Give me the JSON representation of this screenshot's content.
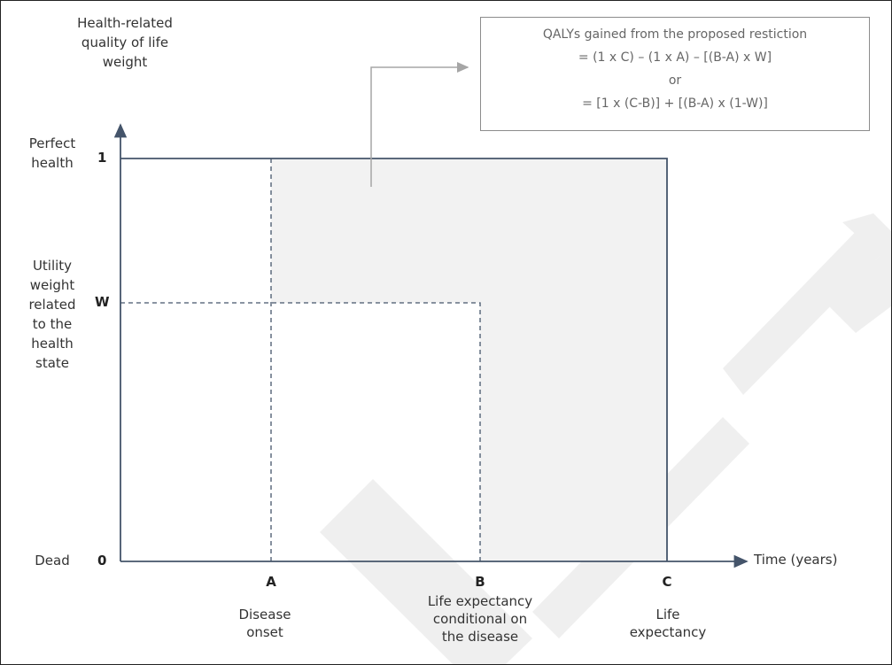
{
  "y_axis": {
    "title": "Health-related\nquality of life\nweight",
    "states": {
      "perfect": "Perfect\nhealth",
      "utility": "Utility\nweight\nrelated\nto the\nhealth\nstate",
      "dead": "Dead"
    },
    "ticks": {
      "one": "1",
      "w": "W",
      "zero": "0"
    }
  },
  "x_axis": {
    "title": "Time (years)",
    "ticks": {
      "a": "A",
      "b": "B",
      "c": "C"
    },
    "descriptions": {
      "a": "Disease\nonset",
      "b": "Life expectancy\nconditional on\nthe disease",
      "c": "Life\nexpectancy"
    }
  },
  "formula_box": {
    "line1": "QALYs gained from the proposed restiction",
    "line2": "= (1 x C) – (1 x A) – [(B-A) x W]",
    "line3": "or",
    "line4": "= [1 x (C-B)] + [(B-A) x (1-W)]"
  },
  "colors": {
    "axis": "#44546a",
    "shaded_area": "#f2f2f2",
    "watermark": "#efefef",
    "connector": "#a6a6a6"
  }
}
